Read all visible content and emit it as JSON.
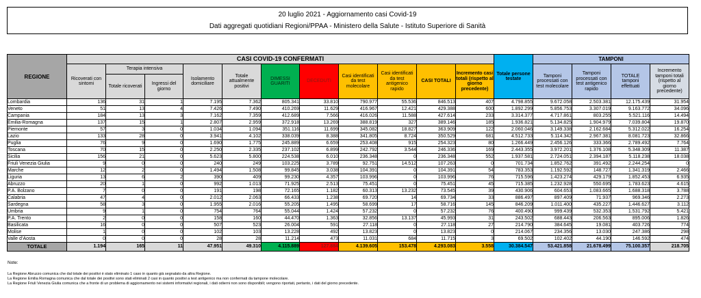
{
  "report_header": {
    "line1": "20 luglio 2021 - Aggiornamento casi Covid-19",
    "line2": "Dati aggregati quotidiani Regioni/PPAA - Ministero della Salute - Istituto Superiore di Sanità"
  },
  "table": {
    "region_header": "REGIONE",
    "groups": {
      "confirmed": "CASI COVID-19 CONFERMATI",
      "tamponi": "TAMPONI",
      "terapia_intensiva": "Terapia intensiva"
    },
    "columns": {
      "ricoverati": "Ricoverati con sintomi",
      "terapia_totale": "Totale ricoverati",
      "terapia_ingressi": "Ingressi del giorno",
      "isolamento": "Isolamento domiciliare",
      "attualmente_positivi": "Totale attualmente positivi",
      "dimessi_guariti": "DIMESSI GUARITI",
      "deceduti": "DECEDUTI",
      "casi_molecolare": "Casi identificati da test molecolare",
      "casi_antigenico": "Casi identificati da test antigenico rapido",
      "casi_totali": "CASI TOTALI",
      "incremento_casi": "Incremento casi totali (rispetto al giorno precedente)",
      "persone_testate": "Totale persone testate",
      "tamponi_molecolare": "Tamponi processati con test molecolare",
      "tamponi_antigenico": "Tamponi processati con test antigenico rapido",
      "tamponi_totale": "TOTALE tamponi effettuati",
      "incremento_tamponi": "Incremento tamponi totali (rispetto al giorno precedente)"
    },
    "rows": [
      {
        "region": "Lombardia",
        "values": [
          "136",
          "31",
          "1",
          "7.195",
          "7.362",
          "805.341",
          "33.810",
          "790.977",
          "55.536",
          "846.513",
          "407",
          "4.798.855",
          "9.672.058",
          "2.503.381",
          "12.175.439",
          "31.954"
        ]
      },
      {
        "region": "Veneto",
        "values": [
          "51",
          "13",
          "4",
          "7.426",
          "7.490",
          "410.269",
          "11.629",
          "416.967",
          "12.421",
          "429.388",
          "600",
          "1.892.299",
          "5.856.753",
          "3.307.019",
          "9.163.772",
          "34.096"
        ]
      },
      {
        "region": "Campania",
        "values": [
          "184",
          "13",
          "3",
          "7.162",
          "7.359",
          "412.689",
          "7.566",
          "416.026",
          "11.588",
          "427.614",
          "233",
          "3.314.377",
          "4.717.861",
          "803.255",
          "5.521.116",
          "14.494"
        ]
      },
      {
        "region": "Emilia-Romagna",
        "values": [
          "137",
          "15",
          "1",
          "2.807",
          "2.959",
          "372.918",
          "13.269",
          "388.819",
          "327",
          "389.146",
          "185",
          "1.936.821",
          "5.134.825",
          "1.904.979",
          "7.039.804",
          "19.870"
        ]
      },
      {
        "region": "Piemonte",
        "values": [
          "57",
          "3",
          "0",
          "1.034",
          "1.094",
          "351.116",
          "11.699",
          "345.082",
          "18.827",
          "363.909",
          "122",
          "2.060.046",
          "3.149.338",
          "2.162.684",
          "5.312.022",
          "16.254"
        ]
      },
      {
        "region": "Lazio",
        "values": [
          "133",
          "28",
          "0",
          "3.941",
          "4.102",
          "338.039",
          "8.388",
          "341.805",
          "8.724",
          "350.529",
          "681",
          "4.512.733",
          "5.114.342",
          "2.967.381",
          "8.081.723",
          "32.866"
        ]
      },
      {
        "region": "Puglia",
        "values": [
          "76",
          "9",
          "0",
          "1.690",
          "1.775",
          "245.889",
          "6.659",
          "253.408",
          "915",
          "254.323",
          "80",
          "1.266.449",
          "2.456.126",
          "333.366",
          "2.789.492",
          "7.764"
        ]
      },
      {
        "region": "Toscana",
        "values": [
          "70",
          "15",
          "0",
          "2.250",
          "2.335",
          "237.102",
          "6.899",
          "242.792",
          "3.544",
          "246.336",
          "169",
          "2.443.355",
          "3.972.201",
          "1.376.108",
          "5.348.309",
          "11.387"
        ]
      },
      {
        "region": "Sicilia",
        "values": [
          "156",
          "21",
          "0",
          "5.623",
          "5.800",
          "224.538",
          "6.010",
          "236.348",
          "0",
          "236.348",
          "552",
          "1.937.581",
          "2.724.051",
          "2.394.187",
          "5.118.238",
          "18.038"
        ]
      },
      {
        "region": "Friuli Venezia Giulia",
        "values": [
          "9",
          "0",
          "0",
          "240",
          "249",
          "103.225",
          "3.789",
          "92.751",
          "14.512",
          "107.263",
          "0",
          "701.734",
          "1.852.762",
          "391.492",
          "2.244.254",
          "0"
        ]
      },
      {
        "region": "Marche",
        "values": [
          "12",
          "2",
          "0",
          "1.494",
          "1.508",
          "99.845",
          "3.038",
          "104.391",
          "0",
          "104.391",
          "54",
          "783.353",
          "1.192.592",
          "148.727",
          "1.341.319",
          "2.466"
        ]
      },
      {
        "region": "Liguria",
        "values": [
          "13",
          "6",
          "2",
          "390",
          "409",
          "99.230",
          "4.357",
          "103.996",
          "0",
          "103.996",
          "76",
          "715.596",
          "1.423.274",
          "429.179",
          "1.852.453",
          "6.935"
        ]
      },
      {
        "region": "Abruzzo",
        "values": [
          "20",
          "1",
          "0",
          "992",
          "1.013",
          "71.925",
          "2.513",
          "75.451",
          "0",
          "75.451",
          "45",
          "715.385",
          "1.232.928",
          "550.695",
          "1.783.623",
          "4.615"
        ]
      },
      {
        "region": "P.A. Bolzano",
        "values": [
          "7",
          "0",
          "0",
          "191",
          "198",
          "72.165",
          "1.182",
          "60.313",
          "13.232",
          "73.545",
          "39",
          "430.906",
          "604.653",
          "1.083.665",
          "1.688.318",
          "3.788"
        ]
      },
      {
        "region": "Calabria",
        "values": [
          "47",
          "4",
          "0",
          "2.012",
          "2.063",
          "66.433",
          "1.238",
          "69.720",
          "14",
          "69.734",
          "33",
          "886.497",
          "897.409",
          "71.937",
          "969.346",
          "2.273"
        ]
      },
      {
        "region": "Sardegna",
        "values": [
          "58",
          "3",
          "0",
          "1.955",
          "2.016",
          "55.205",
          "1.495",
          "58.699",
          "17",
          "58.716",
          "145",
          "846.209",
          "1.011.400",
          "435.227",
          "1.446.627",
          "3.112"
        ]
      },
      {
        "region": "Umbria",
        "values": [
          "9",
          "1",
          "0",
          "754",
          "764",
          "55.044",
          "1.424",
          "57.232",
          "0",
          "57.232",
          "76",
          "400.490",
          "999.439",
          "532.353",
          "1.531.792",
          "5.421"
        ]
      },
      {
        "region": "P.A. Trento",
        "values": [
          "2",
          "0",
          "0",
          "158",
          "160",
          "44.470",
          "1.363",
          "32.856",
          "13.137",
          "45.993",
          "31",
          "243.502",
          "688.443",
          "206.563",
          "895.006",
          "1.826"
        ]
      },
      {
        "region": "Basilicata",
        "values": [
          "16",
          "0",
          "0",
          "507",
          "523",
          "26.004",
          "591",
          "27.118",
          "0",
          "27.118",
          "27",
          "214.790",
          "384.645",
          "19.081",
          "403.726",
          "774"
        ]
      },
      {
        "region": "Molise",
        "values": [
          "1",
          "0",
          "0",
          "102",
          "103",
          "13.228",
          "492",
          "13.823",
          "0",
          "13.823",
          "0",
          "214.067",
          "234.356",
          "13.030",
          "247.386",
          "298"
        ]
      },
      {
        "region": "Valle d’Aosta",
        "values": [
          "0",
          "0",
          "0",
          "28",
          "28",
          "11.214",
          "473",
          "11.031",
          "684",
          "11.715",
          "3",
          "69.502",
          "102.402",
          "44.190",
          "146.592",
          "474"
        ]
      }
    ],
    "total": {
      "label": "TOTALE",
      "values": [
        "1.194",
        "165",
        "11",
        "47.951",
        "49.310",
        "4.115.889",
        "127.884",
        "4.139.605",
        "153.478",
        "4.293.083",
        "3.558",
        "30.384.547",
        "53.421.858",
        "21.678.499",
        "75.100.357",
        "218.705"
      ]
    }
  },
  "notes": {
    "title": "Note:",
    "items": [
      "La Regione Abruzzo comunica che dal totale dei positivi è stato eliminato 1 caso in quanto già segnalato da altra Regione.",
      "La Regione Emilia Romagna comunica che dal totale dei positivi sono stati eliminati 2 casi in quanto positivi a test antigenico ma non confermati da tampone molecolare.",
      "La Regione Friuli Venezia Giulia comunica che a fronte di un problema di aggiornamento nei sistemi informativi regionali, i dati odierni non sono disponibili; vengono riportati, pertanto, i dati del giorno precedente."
    ]
  },
  "colors": {
    "green": "#00b050",
    "red": "#ff0000",
    "orange": "#ffc000",
    "cyan": "#00b0f0",
    "light_blue": "#b4c6e7",
    "pale_blue_gray": "#d6dce4",
    "header_gray": "#d9d9d9",
    "dark_gray": "#a6a6a6"
  }
}
